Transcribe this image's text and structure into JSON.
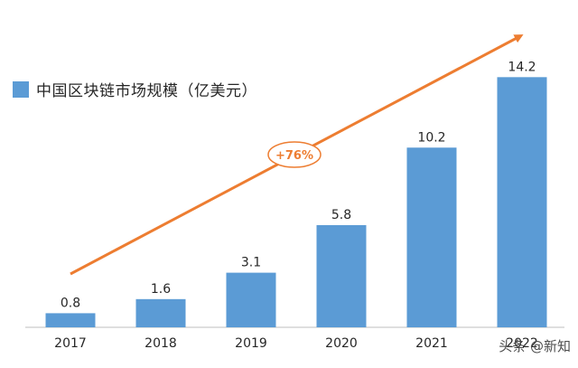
{
  "chart_data": {
    "type": "bar",
    "categories": [
      "2017",
      "2018",
      "2019",
      "2020",
      "2021",
      "2022"
    ],
    "series": [
      {
        "name": "中国区块链市场规模（亿美元）",
        "values": [
          0.8,
          1.6,
          3.1,
          5.8,
          10.2,
          14.2
        ]
      }
    ],
    "data_labels": [
      "0.8",
      "1.6",
      "3.1",
      "5.8",
      "10.2",
      "14.2"
    ],
    "ylim": [
      0,
      15.5
    ],
    "grid": false,
    "legend_position": "top-left",
    "annotation": "+76%",
    "colors": {
      "bar": "#5b9bd5",
      "arrow": "#ed7d31",
      "text": "#262626",
      "axis": "#bfbfbf"
    }
  },
  "watermark": "头条 @新知"
}
